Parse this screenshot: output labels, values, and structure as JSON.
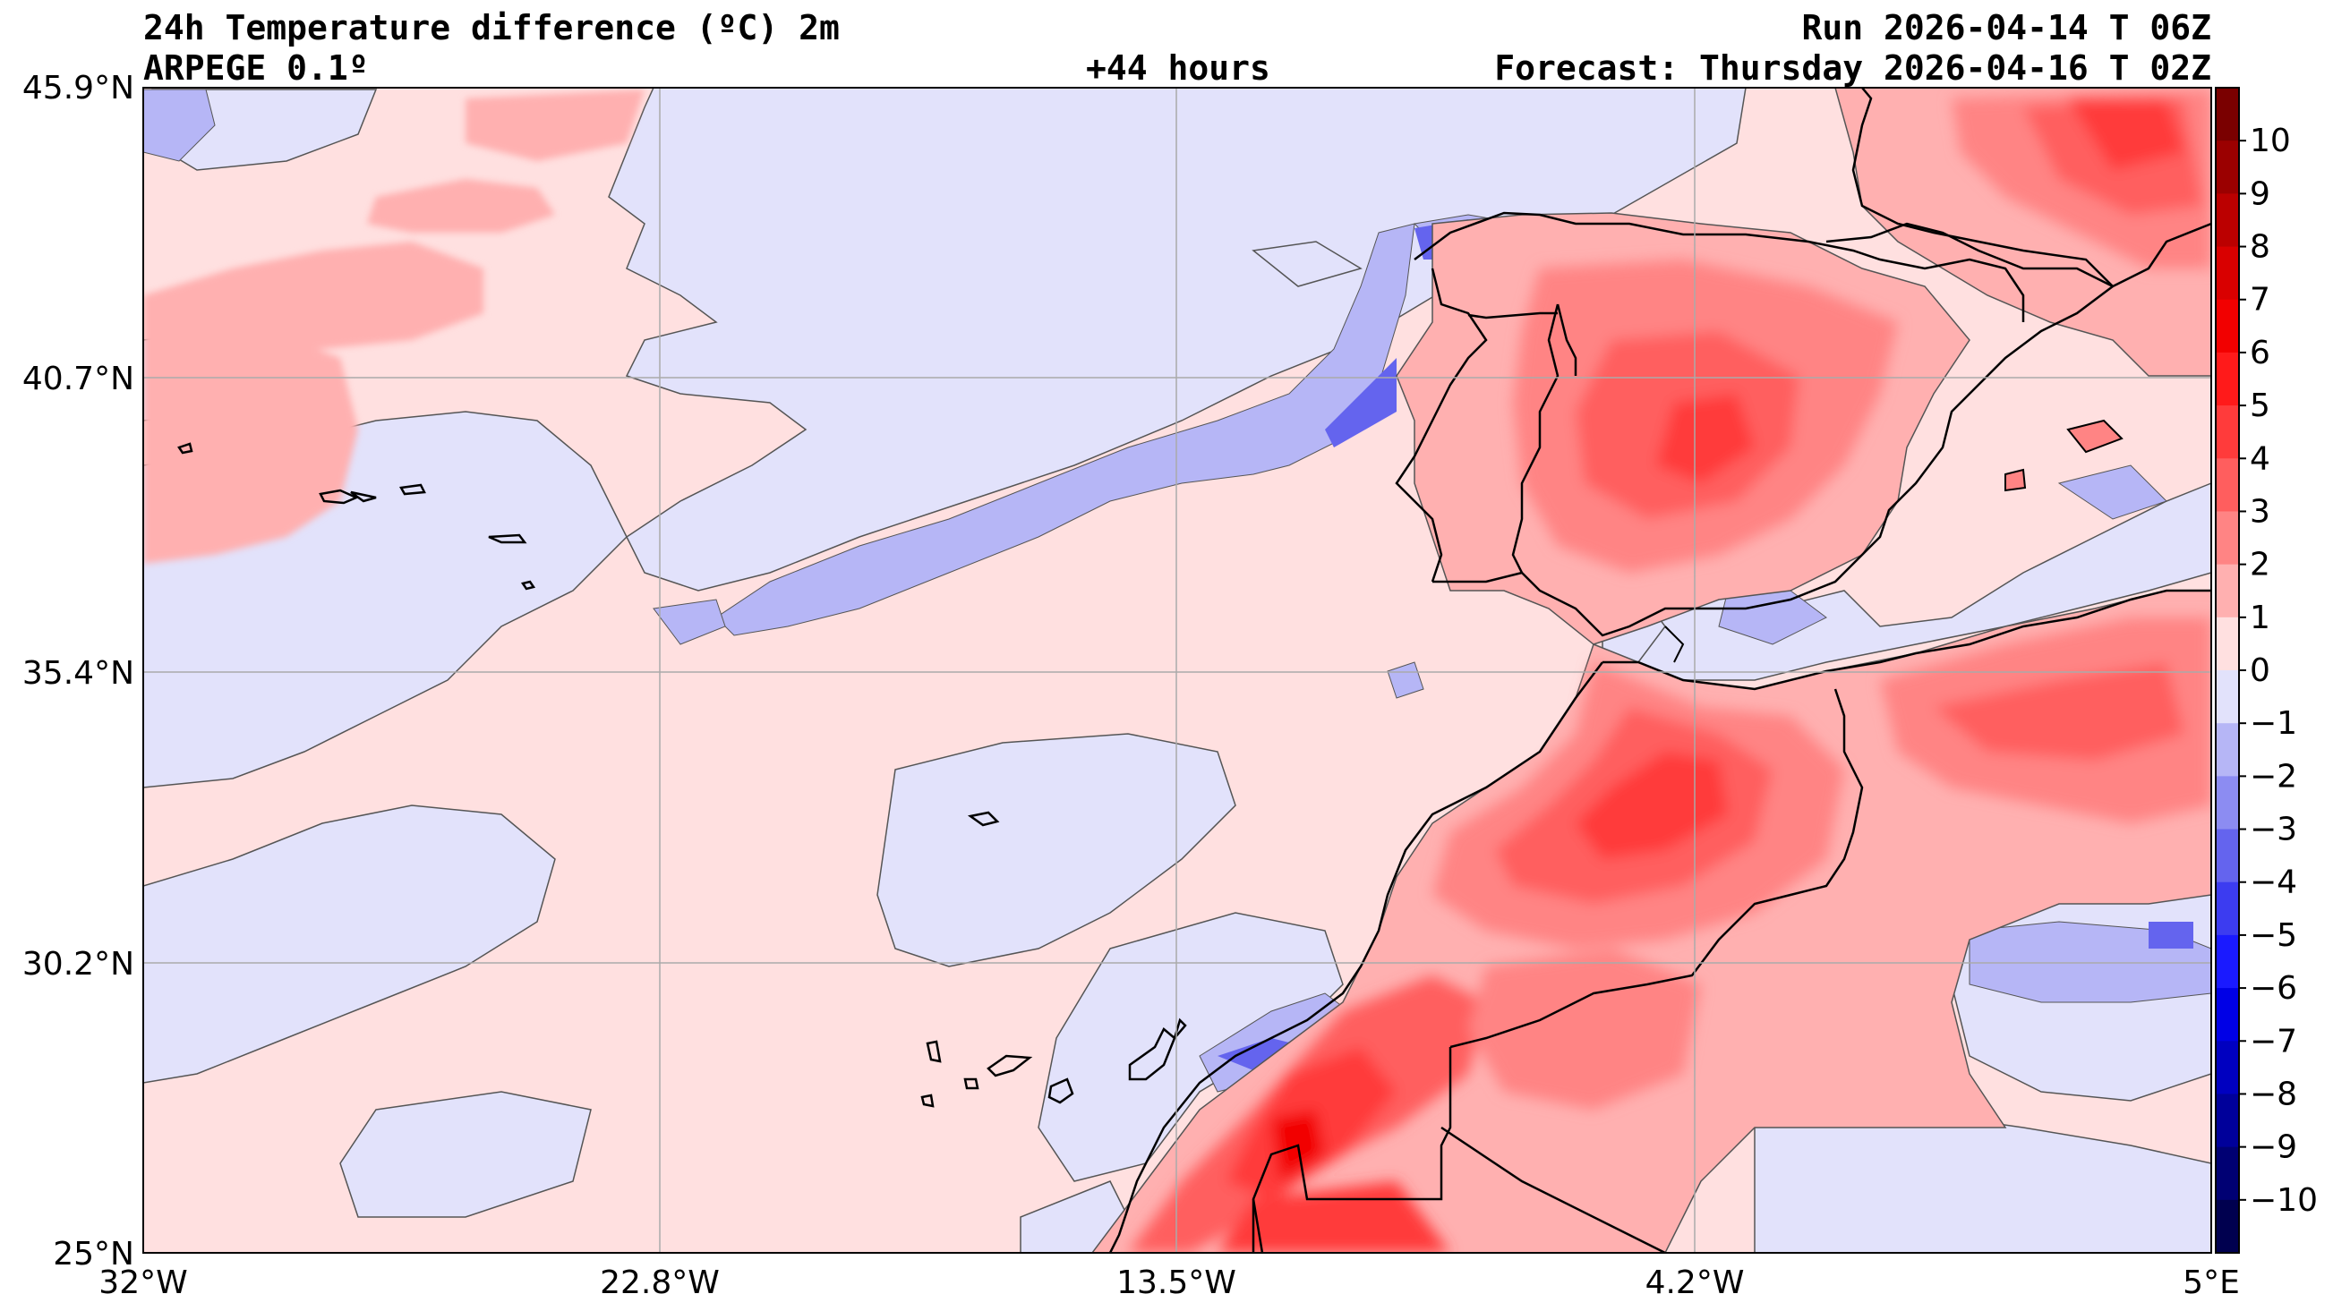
{
  "header": {
    "title": "24h Temperature difference (ºC) 2m",
    "model": "ARPEGE 0.1º",
    "lead_time": "+44 hours",
    "run": "Run 2026-04-14 T 06Z",
    "forecast": "Forecast: Thursday 2026-04-16 T 02Z"
  },
  "axes": {
    "lat_labels": [
      "45.9°N",
      "40.7°N",
      "35.4°N",
      "30.2°N",
      "25°N"
    ],
    "lon_labels": [
      "32°W",
      "22.8°W",
      "13.5°W",
      "4.2°W",
      "5°E"
    ],
    "lat_range": [
      25,
      45.9
    ],
    "lon_range": [
      -32,
      5
    ]
  },
  "colorbar": {
    "labels": [
      "10",
      "9",
      "8",
      "7",
      "6",
      "5",
      "4",
      "3",
      "2",
      "1",
      "0",
      "−1",
      "−2",
      "−3",
      "−4",
      "−5",
      "−6",
      "−7",
      "−8",
      "−9",
      "−10"
    ],
    "colors": [
      "#7a0000",
      "#9b0000",
      "#bb0000",
      "#d90000",
      "#f20000",
      "#ff1a1a",
      "#ff3b3b",
      "#ff5e5e",
      "#ff8484",
      "#ffb0b0",
      "#ffe0e0",
      "#e2e2fb",
      "#b6b6f6",
      "#8c8cf2",
      "#6464ee",
      "#3c3cf0",
      "#1a1aff",
      "#0000e6",
      "#0000c0",
      "#00009a",
      "#000073",
      "#00004f"
    ],
    "range": [
      -11,
      11
    ]
  },
  "legend_scale": {
    "type": "diverging",
    "neutral": "#ffe0e0",
    "cool": "#e2e2fb"
  }
}
